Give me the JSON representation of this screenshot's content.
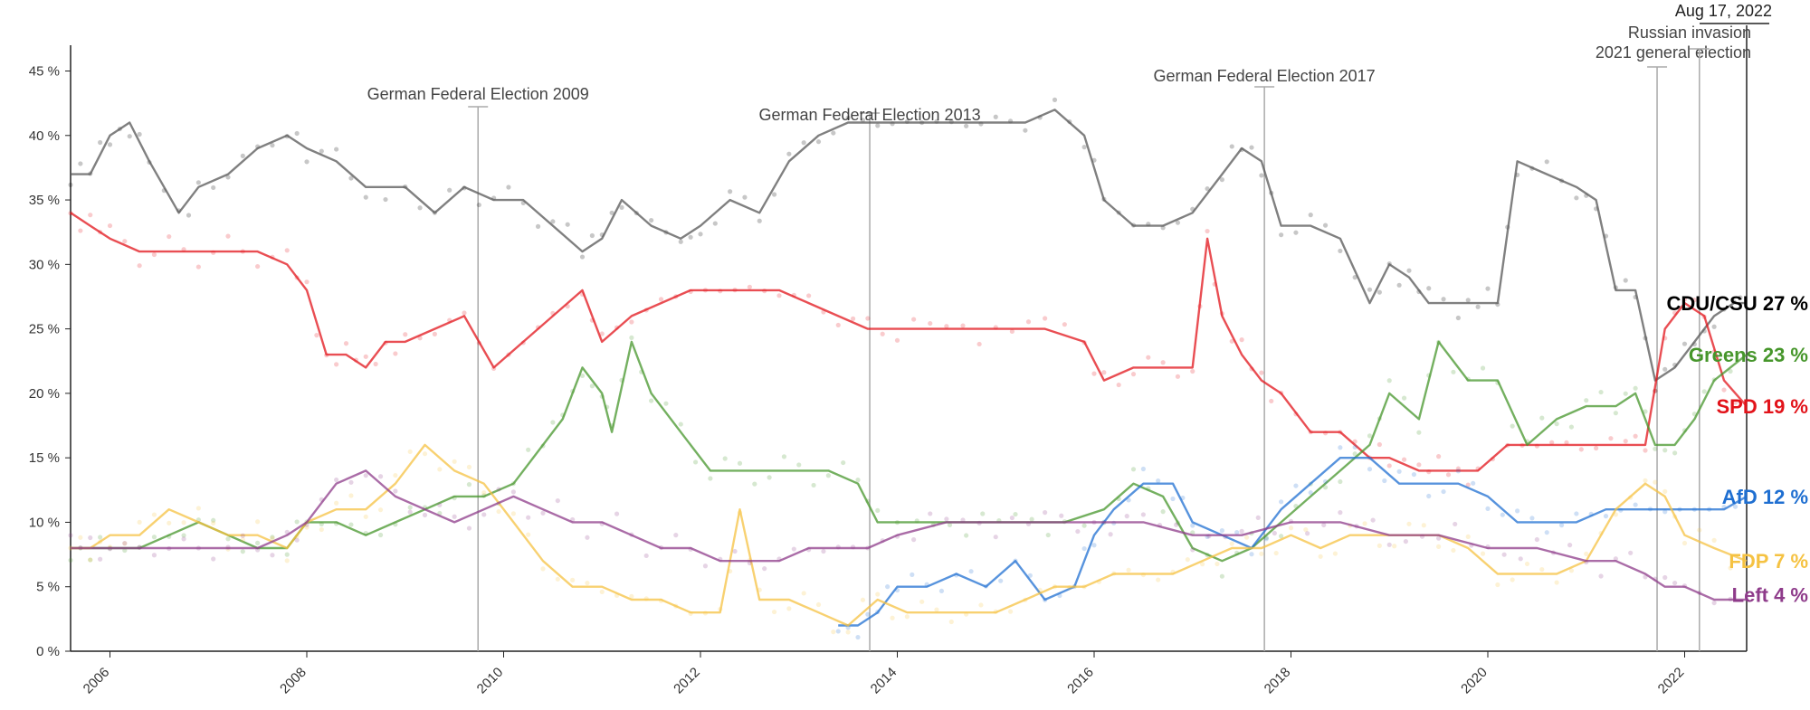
{
  "chart_data": {
    "type": "line",
    "title": "",
    "xlabel": "",
    "ylabel": "",
    "x_range": [
      2005.6,
      2022.63
    ],
    "ylim": [
      0,
      47
    ],
    "y_ticks": [
      0,
      5,
      10,
      15,
      20,
      25,
      30,
      35,
      40,
      45
    ],
    "y_tick_labels": [
      "0 %",
      "5 %",
      "10 %",
      "15 %",
      "20 %",
      "25 %",
      "30 %",
      "35 %",
      "40 %",
      "45 %"
    ],
    "x_ticks": [
      2006,
      2008,
      2010,
      2012,
      2014,
      2016,
      2018,
      2020,
      2022
    ],
    "x_tick_labels": [
      "2006",
      "2008",
      "2010",
      "2012",
      "2014",
      "2016",
      "2018",
      "2020",
      "2022"
    ],
    "grid": false,
    "date_label": "Aug 17, 2022",
    "events": [
      {
        "x": 2009.74,
        "label": "German Federal Election 2009"
      },
      {
        "x": 2013.72,
        "label": "German Federal Election 2013"
      },
      {
        "x": 2017.73,
        "label": "German Federal Election 2017"
      },
      {
        "x": 2021.72,
        "label": "2021 general election"
      },
      {
        "x": 2022.15,
        "label": "Russian invasion"
      }
    ],
    "series": [
      {
        "name": "CDU/CSU",
        "end_label": "CDU/CSU 27 %",
        "color": "#000000",
        "x": [
          2005.6,
          2005.8,
          2006.0,
          2006.2,
          2006.4,
          2006.7,
          2006.9,
          2007.2,
          2007.5,
          2007.8,
          2008.0,
          2008.3,
          2008.6,
          2009.0,
          2009.3,
          2009.6,
          2009.9,
          2010.2,
          2010.5,
          2010.8,
          2011.0,
          2011.2,
          2011.5,
          2011.8,
          2012.0,
          2012.3,
          2012.6,
          2012.9,
          2013.2,
          2013.5,
          2013.8,
          2014.1,
          2014.4,
          2014.7,
          2015.0,
          2015.3,
          2015.6,
          2015.9,
          2016.1,
          2016.4,
          2016.7,
          2017.0,
          2017.3,
          2017.5,
          2017.7,
          2017.9,
          2018.2,
          2018.5,
          2018.8,
          2019.0,
          2019.2,
          2019.4,
          2019.7,
          2019.9,
          2020.1,
          2020.3,
          2020.6,
          2020.9,
          2021.1,
          2021.3,
          2021.5,
          2021.7,
          2021.9,
          2022.1,
          2022.3,
          2022.5,
          2022.63
        ],
        "y": [
          37,
          37,
          40,
          41,
          38,
          34,
          36,
          37,
          39,
          40,
          39,
          38,
          36,
          36,
          34,
          36,
          35,
          35,
          33,
          31,
          32,
          35,
          33,
          32,
          33,
          35,
          34,
          38,
          40,
          41,
          41,
          41,
          41,
          41,
          41,
          41,
          42,
          40,
          35,
          33,
          33,
          34,
          37,
          39,
          38,
          33,
          33,
          32,
          27,
          30,
          29,
          27,
          27,
          27,
          27,
          38,
          37,
          36,
          35,
          28,
          28,
          21,
          22,
          24,
          26,
          27,
          27
        ]
      },
      {
        "name": "SPD",
        "end_label": "SPD 19 %",
        "color": "#e2131a",
        "x": [
          2005.6,
          2005.8,
          2006.0,
          2006.3,
          2006.6,
          2006.9,
          2007.2,
          2007.5,
          2007.8,
          2008.0,
          2008.2,
          2008.4,
          2008.6,
          2008.8,
          2009.0,
          2009.3,
          2009.6,
          2009.9,
          2010.2,
          2010.5,
          2010.8,
          2011.0,
          2011.3,
          2011.6,
          2011.9,
          2012.2,
          2012.5,
          2012.8,
          2013.1,
          2013.4,
          2013.7,
          2014.0,
          2014.5,
          2015.0,
          2015.5,
          2015.9,
          2016.1,
          2016.4,
          2016.7,
          2017.0,
          2017.15,
          2017.3,
          2017.5,
          2017.7,
          2017.9,
          2018.2,
          2018.5,
          2018.8,
          2019.0,
          2019.3,
          2019.5,
          2019.7,
          2019.9,
          2020.2,
          2020.5,
          2020.8,
          2021.1,
          2021.4,
          2021.6,
          2021.8,
          2022.0,
          2022.2,
          2022.4,
          2022.63
        ],
        "y": [
          34,
          33,
          32,
          31,
          31,
          31,
          31,
          31,
          30,
          28,
          23,
          23,
          22,
          24,
          24,
          25,
          26,
          22,
          24,
          26,
          28,
          24,
          26,
          27,
          28,
          28,
          28,
          28,
          27,
          26,
          25,
          25,
          25,
          25,
          25,
          24,
          21,
          22,
          22,
          22,
          32,
          26,
          23,
          21,
          20,
          17,
          17,
          15,
          15,
          14,
          14,
          14,
          14,
          16,
          16,
          16,
          16,
          16,
          16,
          25,
          27,
          26,
          21,
          19
        ]
      },
      {
        "name": "Greens",
        "end_label": "Greens 23 %",
        "color": "#46962b",
        "x": [
          2005.6,
          2005.8,
          2006.0,
          2006.3,
          2006.6,
          2006.9,
          2007.2,
          2007.5,
          2007.8,
          2008.0,
          2008.3,
          2008.6,
          2008.9,
          2009.2,
          2009.5,
          2009.8,
          2010.1,
          2010.4,
          2010.6,
          2010.8,
          2011.0,
          2011.1,
          2011.3,
          2011.5,
          2011.8,
          2012.1,
          2012.4,
          2012.7,
          2013.0,
          2013.3,
          2013.6,
          2013.8,
          2014.2,
          2014.7,
          2015.2,
          2015.7,
          2016.1,
          2016.4,
          2016.7,
          2017.0,
          2017.3,
          2017.6,
          2017.9,
          2018.2,
          2018.5,
          2018.8,
          2019.0,
          2019.3,
          2019.5,
          2019.8,
          2020.1,
          2020.4,
          2020.7,
          2021.0,
          2021.3,
          2021.5,
          2021.7,
          2021.9,
          2022.1,
          2022.3,
          2022.63
        ],
        "y": [
          8,
          8,
          8,
          8,
          9,
          10,
          9,
          8,
          8,
          10,
          10,
          9,
          10,
          11,
          12,
          12,
          13,
          16,
          18,
          22,
          20,
          17,
          24,
          20,
          17,
          14,
          14,
          14,
          14,
          14,
          13,
          10,
          10,
          10,
          10,
          10,
          11,
          13,
          12,
          8,
          7,
          8,
          10,
          12,
          14,
          16,
          20,
          18,
          24,
          21,
          21,
          16,
          18,
          19,
          19,
          20,
          16,
          16,
          18,
          21,
          23
        ]
      },
      {
        "name": "AfD",
        "end_label": "AfD 12 %",
        "color": "#1f6fd1",
        "x": [
          2013.4,
          2013.6,
          2013.8,
          2014.0,
          2014.3,
          2014.6,
          2014.9,
          2015.2,
          2015.5,
          2015.8,
          2016.0,
          2016.2,
          2016.5,
          2016.8,
          2017.0,
          2017.3,
          2017.6,
          2017.9,
          2018.2,
          2018.5,
          2018.8,
          2019.1,
          2019.4,
          2019.7,
          2020.0,
          2020.3,
          2020.6,
          2020.9,
          2021.2,
          2021.5,
          2021.8,
          2022.1,
          2022.4,
          2022.63
        ],
        "y": [
          2,
          2,
          3,
          5,
          5,
          6,
          5,
          7,
          4,
          5,
          9,
          11,
          13,
          13,
          10,
          9,
          8,
          11,
          13,
          15,
          15,
          13,
          13,
          13,
          12,
          10,
          10,
          10,
          11,
          11,
          11,
          11,
          11,
          12
        ]
      },
      {
        "name": "FDP",
        "end_label": "FDP 7 %",
        "color": "#f5c242",
        "x": [
          2005.6,
          2005.8,
          2006.0,
          2006.3,
          2006.6,
          2006.9,
          2007.2,
          2007.5,
          2007.8,
          2008.0,
          2008.3,
          2008.6,
          2008.9,
          2009.2,
          2009.5,
          2009.8,
          2010.1,
          2010.4,
          2010.7,
          2011.0,
          2011.3,
          2011.6,
          2011.9,
          2012.2,
          2012.4,
          2012.6,
          2012.9,
          2013.2,
          2013.5,
          2013.8,
          2014.1,
          2014.4,
          2014.7,
          2015.0,
          2015.3,
          2015.6,
          2015.9,
          2016.2,
          2016.5,
          2016.8,
          2017.1,
          2017.4,
          2017.7,
          2018.0,
          2018.3,
          2018.6,
          2018.9,
          2019.2,
          2019.5,
          2019.8,
          2020.1,
          2020.4,
          2020.7,
          2021.0,
          2021.3,
          2021.6,
          2021.8,
          2022.0,
          2022.3,
          2022.63
        ],
        "y": [
          8,
          8,
          9,
          9,
          11,
          10,
          9,
          9,
          8,
          10,
          11,
          11,
          13,
          16,
          14,
          13,
          10,
          7,
          5,
          5,
          4,
          4,
          3,
          3,
          11,
          4,
          4,
          3,
          2,
          4,
          3,
          3,
          3,
          3,
          4,
          5,
          5,
          6,
          6,
          6,
          7,
          8,
          8,
          9,
          8,
          9,
          9,
          9,
          9,
          8,
          6,
          6,
          6,
          7,
          11,
          13,
          12,
          9,
          8,
          7
        ]
      },
      {
        "name": "Left",
        "end_label": "Left 4 %",
        "color": "#8e3b8a",
        "x": [
          2005.6,
          2005.8,
          2006.0,
          2006.3,
          2006.6,
          2006.9,
          2007.2,
          2007.5,
          2007.8,
          2008.0,
          2008.3,
          2008.6,
          2008.9,
          2009.2,
          2009.5,
          2009.8,
          2010.1,
          2010.4,
          2010.7,
          2011.0,
          2011.3,
          2011.6,
          2011.9,
          2012.2,
          2012.5,
          2012.8,
          2013.1,
          2013.4,
          2013.7,
          2014.0,
          2014.5,
          2015.0,
          2015.5,
          2016.0,
          2016.5,
          2017.0,
          2017.5,
          2018.0,
          2018.5,
          2019.0,
          2019.5,
          2020.0,
          2020.5,
          2021.0,
          2021.3,
          2021.6,
          2021.8,
          2022.0,
          2022.3,
          2022.63
        ],
        "y": [
          8,
          8,
          8,
          8,
          8,
          8,
          8,
          8,
          9,
          10,
          13,
          14,
          12,
          11,
          10,
          11,
          12,
          11,
          10,
          10,
          9,
          8,
          8,
          7,
          7,
          7,
          8,
          8,
          8,
          9,
          10,
          10,
          10,
          10,
          10,
          9,
          9,
          10,
          10,
          9,
          9,
          8,
          8,
          7,
          7,
          6,
          5,
          5,
          4,
          4
        ]
      }
    ]
  }
}
